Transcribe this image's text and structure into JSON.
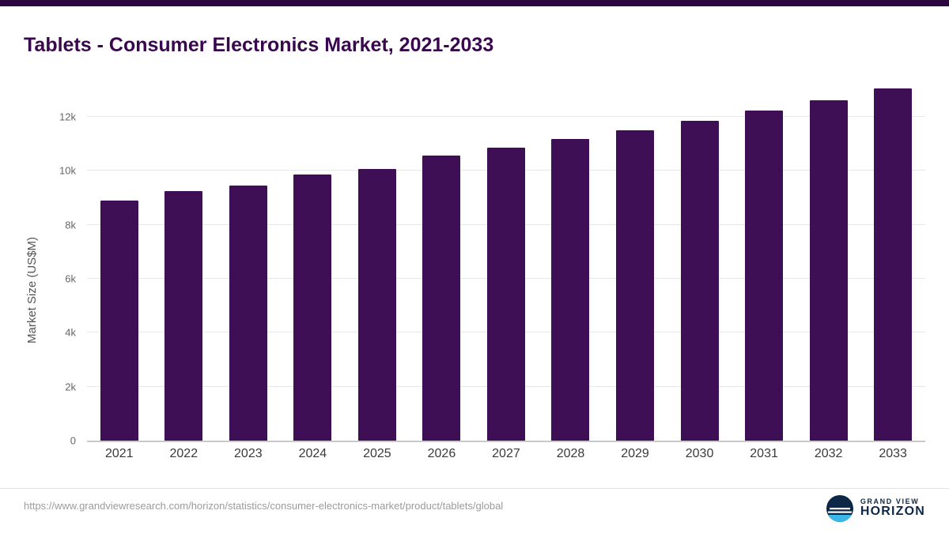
{
  "page": {
    "title": "Tablets - Consumer Electronics Market, 2021-2033",
    "source_url": "https://www.grandviewresearch.com/horizon/statistics/consumer-electronics-market/product/tablets/global"
  },
  "branding": {
    "line1": "GRAND VIEW",
    "line2": "HORIZON",
    "logo_navy": "#0e2747",
    "logo_blue": "#3ab7e8"
  },
  "chart_data": {
    "type": "bar",
    "title": "Tablets - Consumer Electronics Market, 2021-2033",
    "categories": [
      "2021",
      "2022",
      "2023",
      "2024",
      "2025",
      "2026",
      "2027",
      "2028",
      "2029",
      "2030",
      "2031",
      "2032",
      "2033"
    ],
    "values": [
      8900,
      9250,
      9450,
      9850,
      10080,
      10550,
      10850,
      11180,
      11500,
      11850,
      12220,
      12600,
      13050
    ],
    "xlabel": "",
    "ylabel": "Market Size (US$M)",
    "ylim": [
      0,
      13400
    ],
    "yticks": [
      {
        "value": 0,
        "label": "0"
      },
      {
        "value": 2000,
        "label": "2k"
      },
      {
        "value": 4000,
        "label": "4k"
      },
      {
        "value": 6000,
        "label": "6k"
      },
      {
        "value": 8000,
        "label": "8k"
      },
      {
        "value": 10000,
        "label": "10k"
      },
      {
        "value": 12000,
        "label": "12k"
      }
    ],
    "grid": true,
    "legend": false,
    "bar_color": "#3e0f54"
  }
}
